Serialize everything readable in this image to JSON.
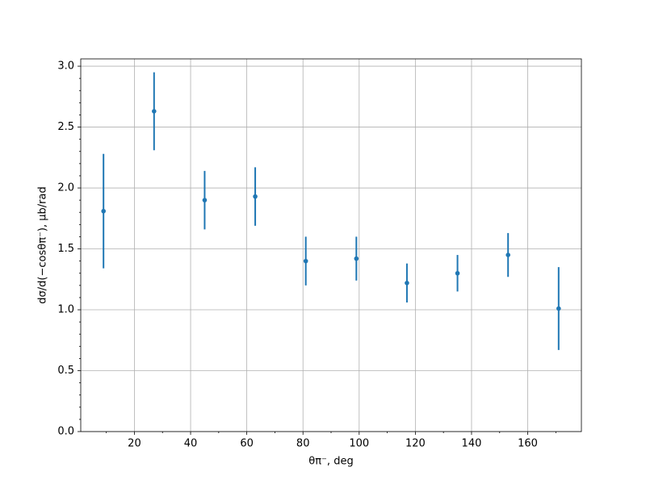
{
  "chart_data": {
    "type": "errorbar",
    "x_label": "θπ⁻, deg",
    "y_label": "dσ/d(−cosθπ⁻), μb/rad",
    "x": [
      9,
      27,
      45,
      63,
      81,
      99,
      117,
      135,
      153,
      171
    ],
    "series": [
      {
        "color": "#1f77b4",
        "values": [
          1.81,
          2.63,
          1.9,
          1.93,
          1.4,
          1.42,
          1.22,
          1.3,
          1.45,
          1.01
        ],
        "errors": [
          0.47,
          0.32,
          0.24,
          0.24,
          0.2,
          0.18,
          0.16,
          0.15,
          0.18,
          0.34
        ]
      }
    ],
    "xlim": [
      0.9,
      179.1
    ],
    "ylim": [
      0,
      3.06
    ],
    "xticks": [
      20,
      40,
      60,
      80,
      100,
      120,
      140,
      160
    ],
    "xminorticks": [
      10,
      30,
      50,
      70,
      90,
      110,
      130,
      150,
      170
    ],
    "yticks": [
      {
        "value": 0,
        "label": "0.0"
      },
      0.5,
      {
        "value": 1,
        "label": "1.0"
      },
      1.5,
      {
        "value": 2,
        "label": "2.0"
      },
      2.5,
      {
        "value": 3,
        "label": "3.0"
      }
    ],
    "yminorticks": [
      0.1,
      0.2,
      0.3,
      0.4,
      0.6,
      0.7,
      0.8,
      0.9,
      1.1,
      1.2,
      1.3,
      1.4,
      1.6,
      1.7,
      1.8,
      1.9,
      2.1,
      2.2,
      2.3,
      2.4,
      2.6,
      2.7,
      2.8,
      2.9
    ],
    "grid": true
  }
}
